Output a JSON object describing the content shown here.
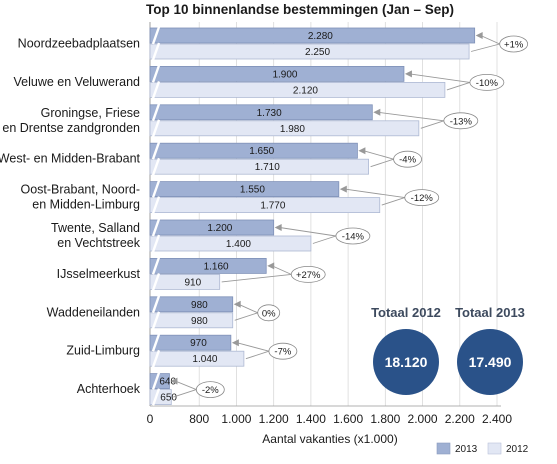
{
  "chart_data": {
    "type": "bar",
    "orientation": "horizontal",
    "title": "Top 10 binnenlandse bestemmingen (Jan – Sep)",
    "xlabel": "Aantal vakanties (x1.000)",
    "categories": [
      [
        "Noordzeebadplaatsen"
      ],
      [
        "Veluwe en Veluwerand"
      ],
      [
        "Groningse, Friese",
        "en Drentse zandgronden"
      ],
      [
        "West- en Midden-Brabant"
      ],
      [
        "Oost-Brabant, Noord-",
        "en Midden-Limburg"
      ],
      [
        "Twente, Salland",
        "en Vechtstreek"
      ],
      [
        "IJsselmeerkust"
      ],
      [
        "Waddeneilanden"
      ],
      [
        "Zuid-Limburg"
      ],
      [
        "Achterhoek"
      ]
    ],
    "series": [
      {
        "name": "2013",
        "values": [
          2280,
          1900,
          1730,
          1650,
          1550,
          1200,
          1160,
          980,
          970,
          640
        ],
        "labels": [
          "2.280",
          "1.900",
          "1.730",
          "1.650",
          "1.550",
          "1.200",
          "1.160",
          "980",
          "970",
          "640"
        ],
        "color": "#9fb0d3"
      },
      {
        "name": "2012",
        "values": [
          2250,
          2120,
          1980,
          1710,
          1770,
          1400,
          910,
          980,
          1040,
          650
        ],
        "labels": [
          "2.250",
          "2.120",
          "1.980",
          "1.710",
          "1.770",
          "1.400",
          "910",
          "980",
          "1.040",
          "650"
        ],
        "color": "#e2e7f4"
      }
    ],
    "changes": [
      "+1%",
      "-10%",
      "-13%",
      "-4%",
      "-12%",
      "-14%",
      "+27%",
      "0%",
      "-7%",
      "-2%"
    ],
    "xticks": [
      0,
      800,
      1000,
      1200,
      1400,
      1600,
      1800,
      2000,
      2200,
      2400
    ],
    "xtick_labels": [
      "0",
      "800",
      "1.000",
      "1.200",
      "1.400",
      "1.600",
      "1.800",
      "2.000",
      "2.200",
      "2.400"
    ],
    "axis_break": [
      0,
      600
    ],
    "xlim": [
      600,
      2400
    ],
    "grid": true,
    "legend_position": "bottom-right",
    "totals": [
      {
        "label": "Totaal 2012",
        "value": "18.120",
        "color": "#2a5289"
      },
      {
        "label": "Totaal 2013",
        "value": "17.490",
        "color": "#2a5289"
      }
    ]
  }
}
